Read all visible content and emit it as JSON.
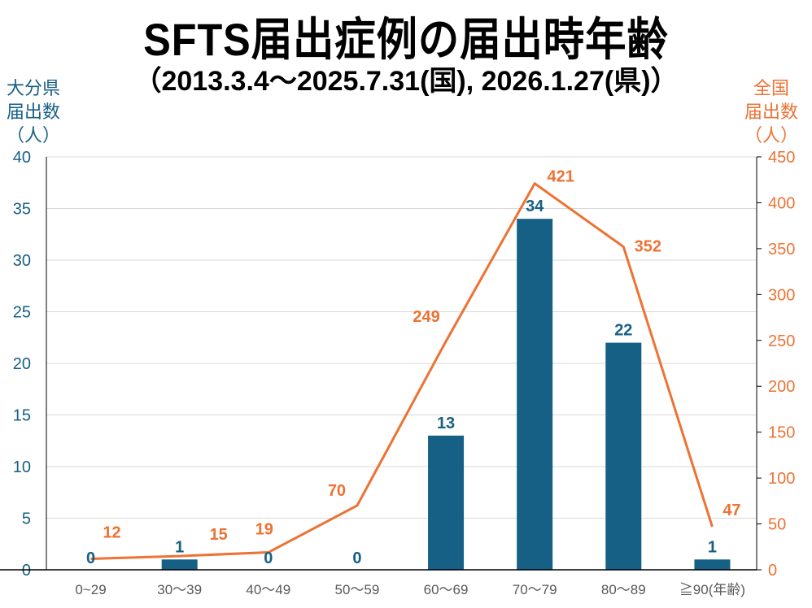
{
  "title": "SFTS届出症例の届出時年齢",
  "subtitle": "（2013.3.4～2025.7.31(国), 2026.1.27(県)）",
  "colors": {
    "prefecture": "#176085",
    "national": "#ED7233",
    "grid": "#d9d9d9"
  },
  "chart_data": {
    "type": "bar+line",
    "categories": [
      "0~29",
      "30～39",
      "40～49",
      "50～59",
      "60～69",
      "70～79",
      "80～89",
      "≧90(年齢)"
    ],
    "series": [
      {
        "name": "大分県届出数",
        "type": "bar",
        "axis": "left",
        "values": [
          0,
          1,
          0,
          0,
          13,
          34,
          22,
          1
        ]
      },
      {
        "name": "全国届出数",
        "type": "line",
        "axis": "right",
        "values": [
          12,
          15,
          19,
          70,
          249,
          421,
          352,
          47
        ]
      }
    ],
    "ylabel_left": "大分県\n届出数\n（人）",
    "ylabel_right": "全国\n届出数\n（人）",
    "ylim_left": [
      0,
      40
    ],
    "yticks_left": [
      0,
      5,
      10,
      15,
      20,
      25,
      30,
      35,
      40
    ],
    "ylim_right": [
      0,
      450
    ],
    "yticks_right": [
      0,
      50,
      100,
      150,
      200,
      250,
      300,
      350,
      400,
      450
    ],
    "grid": true
  }
}
